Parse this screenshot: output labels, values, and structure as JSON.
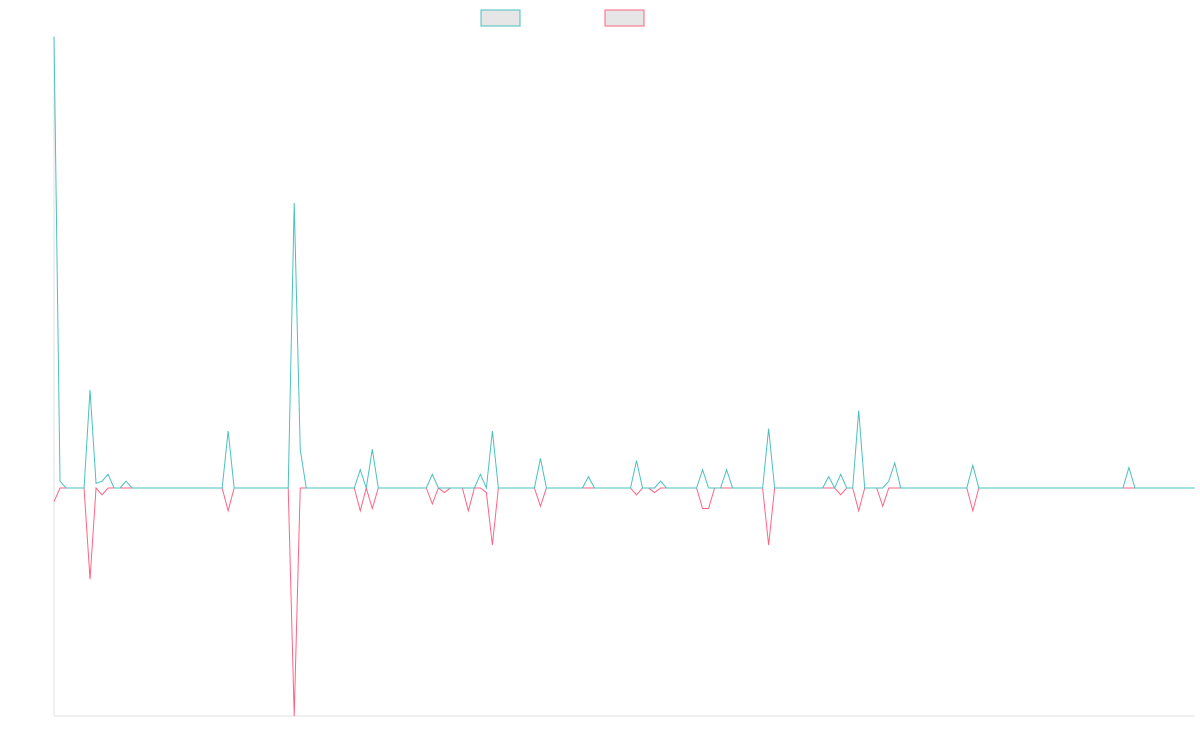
{
  "chart_data": {
    "type": "line",
    "categories": [
      null,
      null,
      null,
      null,
      null,
      null,
      null,
      null,
      null,
      null,
      null,
      null,
      null,
      null,
      null,
      null,
      null,
      null,
      null,
      null,
      null,
      null,
      null,
      null,
      null,
      null,
      null,
      null,
      null,
      null,
      null,
      null,
      null,
      null,
      null,
      null,
      null,
      null,
      null,
      null,
      null,
      null,
      null,
      null,
      null,
      null,
      null,
      null,
      null,
      null,
      null,
      null,
      null,
      null,
      null,
      null,
      null,
      null,
      null,
      null,
      null,
      null,
      null,
      null,
      null,
      null,
      null,
      null,
      null,
      null,
      null,
      null,
      null,
      null,
      null,
      null,
      null,
      null,
      null,
      null,
      null,
      null,
      null,
      null,
      null,
      null,
      null,
      null,
      null,
      null,
      null,
      null,
      null,
      null,
      null,
      null,
      null,
      null,
      null,
      null,
      null,
      null,
      null,
      null,
      null,
      null,
      null,
      null,
      null,
      null,
      null,
      null,
      null,
      null,
      null,
      null,
      null,
      null,
      null,
      null,
      null,
      null,
      null,
      null,
      null,
      null,
      null,
      null,
      null,
      null,
      null,
      null,
      null,
      null,
      null,
      null,
      null,
      null,
      null,
      null,
      null,
      null,
      null,
      null,
      null,
      null,
      null,
      null,
      null,
      null,
      null,
      null,
      null,
      null,
      null,
      null,
      null,
      null,
      null,
      null,
      null,
      null,
      null,
      null,
      null,
      null,
      null,
      null,
      null,
      null,
      null,
      null,
      null,
      null,
      null,
      null,
      null,
      null,
      null,
      null,
      null,
      null,
      null,
      null,
      null,
      null,
      null,
      null,
      null,
      null,
      null
    ],
    "ylim": [
      -1,
      2
    ],
    "series": [
      {
        "color": "#4bc0c0",
        "values": [
          1.98,
          0.03,
          0,
          0,
          0,
          0,
          0.43,
          0.02,
          0.03,
          0.06,
          0,
          0,
          0.03,
          0,
          0,
          0,
          0,
          0,
          0,
          0,
          0,
          0,
          0,
          0,
          0,
          0,
          0,
          0,
          0,
          0.25,
          0,
          0,
          0,
          0,
          0,
          0,
          0,
          0,
          0,
          0,
          1.25,
          0.17,
          0,
          0,
          0,
          0,
          0,
          0,
          0,
          0,
          0,
          0.08,
          0,
          0.17,
          0,
          0,
          0,
          0,
          0,
          0,
          0,
          0,
          0,
          0.06,
          0,
          0,
          0,
          0,
          0,
          0,
          0,
          0.06,
          0,
          0.25,
          0,
          0,
          0,
          0,
          0,
          0,
          0,
          0.13,
          0,
          0,
          0,
          0,
          0,
          0,
          0,
          0.05,
          0,
          0,
          0,
          0,
          0,
          0,
          0,
          0.12,
          0,
          0,
          0,
          0.03,
          0,
          0,
          0,
          0,
          0,
          0,
          0.08,
          0,
          0,
          0,
          0.08,
          0,
          0,
          0,
          0,
          0,
          0,
          0.26,
          0,
          0,
          0,
          0,
          0,
          0,
          0,
          0,
          0,
          0.05,
          0,
          0.06,
          0,
          0,
          0.34,
          0,
          0,
          0,
          0,
          0.03,
          0.11,
          0,
          0,
          0,
          0,
          0,
          0,
          0,
          0,
          0,
          0,
          0,
          0,
          0.1,
          0,
          0,
          0,
          0,
          0,
          0,
          0,
          0,
          0,
          0,
          0,
          0,
          0,
          0,
          0,
          0,
          0,
          0,
          0,
          0,
          0,
          0,
          0,
          0,
          0,
          0.09,
          0,
          0,
          0,
          0,
          0,
          0,
          0,
          0,
          0,
          0,
          0
        ]
      },
      {
        "color": "#ff6384",
        "values": [
          -0.06,
          0,
          0,
          0,
          0,
          0,
          -0.4,
          0,
          -0.03,
          0,
          0,
          0,
          0,
          0,
          0,
          0,
          0,
          0,
          0,
          0,
          0,
          0,
          0,
          0,
          0,
          0,
          0,
          0,
          0,
          -0.1,
          0,
          0,
          0,
          0,
          0,
          0,
          0,
          0,
          0,
          0,
          -1.0,
          0,
          0,
          0,
          0,
          0,
          0,
          0,
          0,
          0,
          0,
          -0.1,
          0,
          -0.09,
          0,
          0,
          0,
          0,
          0,
          0,
          0,
          0,
          0,
          -0.07,
          0,
          -0.02,
          0,
          0,
          0,
          -0.1,
          0,
          0,
          -0.02,
          -0.25,
          0,
          0,
          0,
          0,
          0,
          0,
          0,
          -0.08,
          0,
          0,
          0,
          0,
          0,
          0,
          0,
          0,
          0,
          0,
          0,
          0,
          0,
          0,
          0,
          -0.03,
          0,
          0,
          -0.02,
          0,
          0,
          0,
          0,
          0,
          0,
          0,
          -0.09,
          -0.09,
          0,
          0,
          0,
          0,
          0,
          0,
          0,
          0,
          0,
          -0.25,
          0,
          0,
          0,
          0,
          0,
          0,
          0,
          0,
          0,
          0,
          0,
          -0.03,
          0,
          0,
          -0.1,
          0,
          0,
          0,
          -0.08,
          0,
          0,
          0,
          0,
          0,
          0,
          0,
          0,
          0,
          0,
          0,
          0,
          0,
          0,
          -0.1,
          0,
          0,
          0,
          0,
          0,
          0,
          0,
          0,
          0,
          0,
          0,
          0,
          0,
          0,
          0,
          0,
          0,
          0,
          0,
          0,
          0,
          0,
          0,
          0,
          0,
          0,
          0,
          0,
          0,
          0,
          0,
          0,
          0,
          0,
          0,
          0,
          0
        ]
      }
    ]
  }
}
